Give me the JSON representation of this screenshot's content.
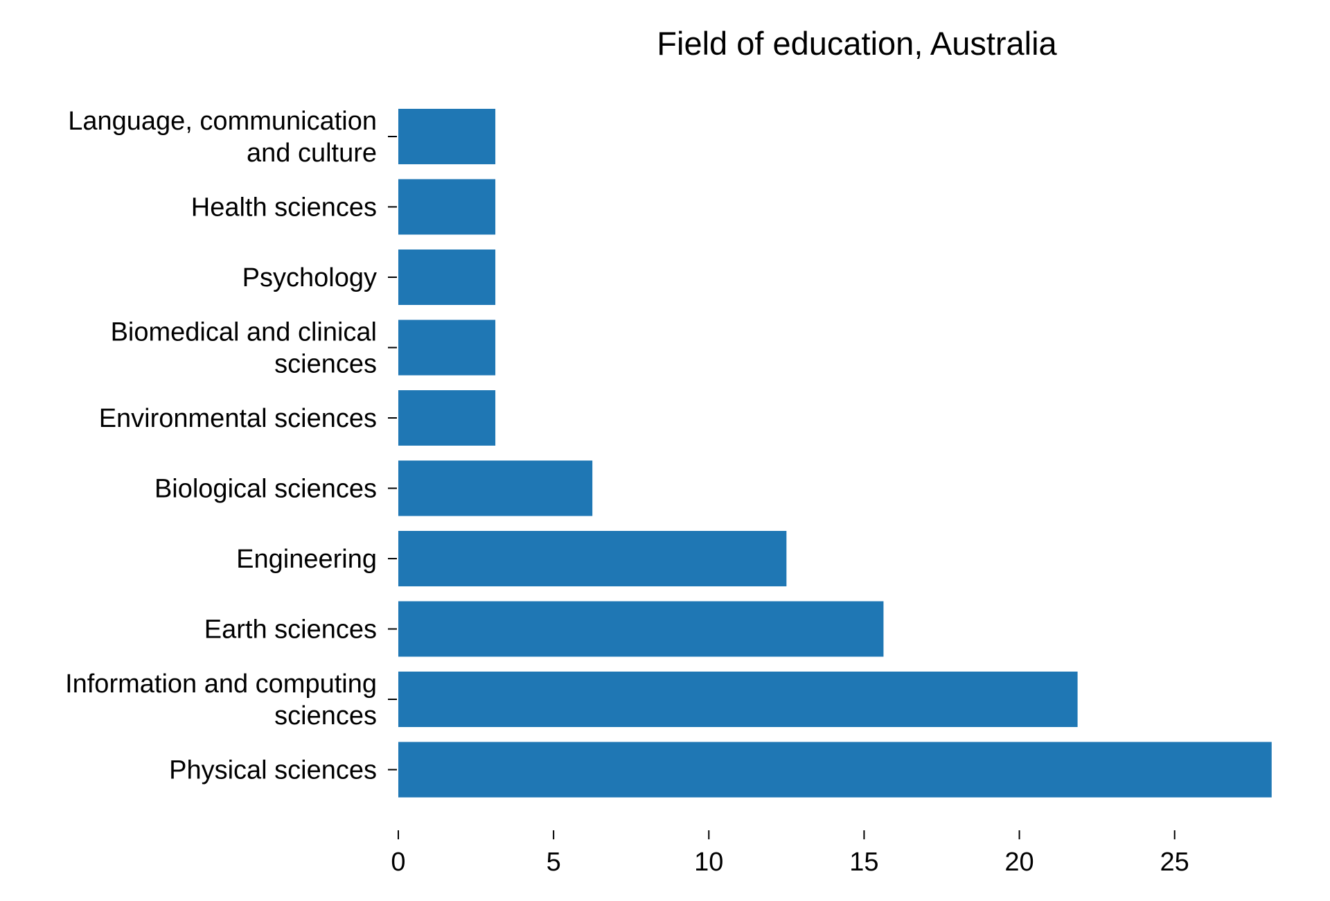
{
  "chart_data": {
    "type": "bar",
    "orientation": "horizontal",
    "title": "Field of education, Australia",
    "xlabel": "",
    "ylabel": "",
    "categories": [
      [
        "Language, communication",
        "and culture"
      ],
      [
        "Health sciences"
      ],
      [
        "Psychology"
      ],
      [
        "Biomedical and clinical",
        "sciences"
      ],
      [
        "Environmental sciences"
      ],
      [
        "Biological sciences"
      ],
      [
        "Engineering"
      ],
      [
        "Earth sciences"
      ],
      [
        "Information and computing",
        "sciences"
      ],
      [
        "Physical sciences"
      ]
    ],
    "values": [
      3.125,
      3.125,
      3.125,
      3.125,
      3.125,
      6.25,
      12.5,
      15.625,
      21.875,
      28.125
    ],
    "xlim": [
      0,
      29
    ],
    "xticks": [
      0,
      5,
      10,
      15,
      20,
      25
    ],
    "grid": false,
    "legend": "none",
    "bar_color": "#1f77b4"
  }
}
